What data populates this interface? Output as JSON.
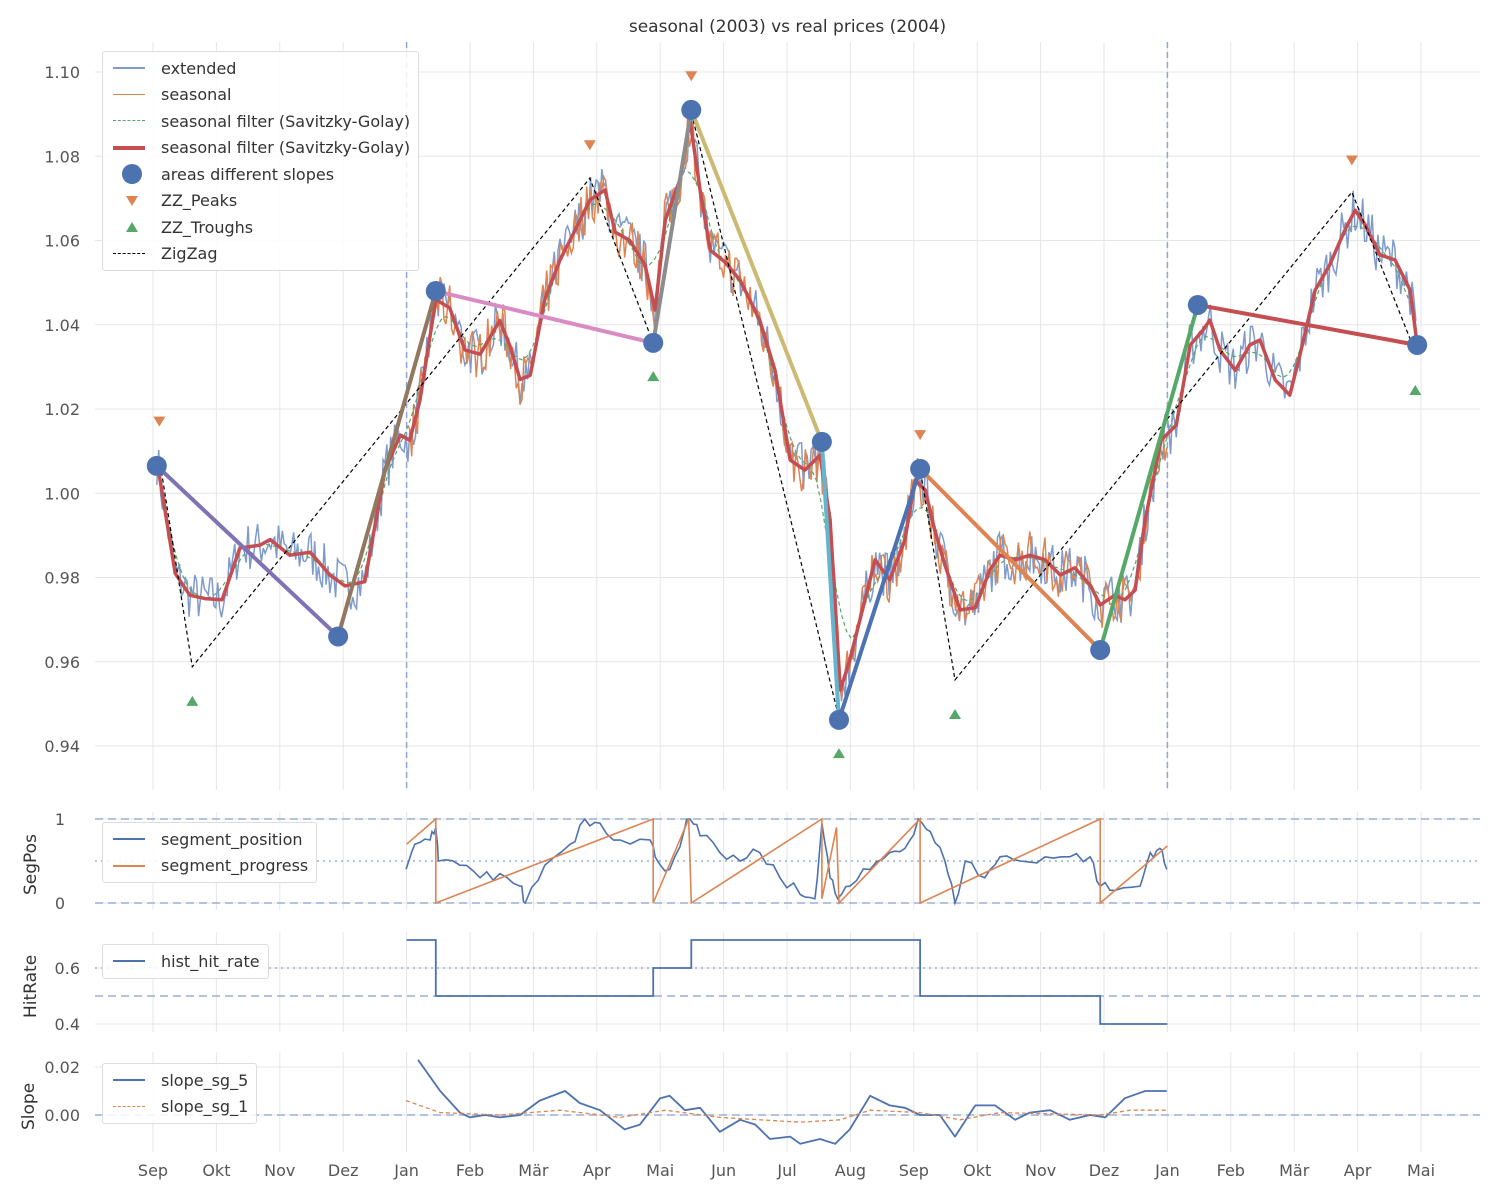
{
  "chart_data": [
    {
      "type": "line",
      "title": "seasonal (2003) vs real prices (2004)",
      "ylabel": "",
      "ylim": [
        0.93,
        1.107
      ],
      "x_unit": "months since Sep 2003",
      "xlim": [
        -0.9,
        21
      ],
      "xtick_labels": [
        "Sep",
        "Okt",
        "Nov",
        "Dez",
        "Jan",
        "Feb",
        "Mär",
        "Apr",
        "Mai",
        "Jun",
        "Jul",
        "Aug",
        "Sep",
        "Okt",
        "Nov",
        "Dez",
        "Jan",
        "Feb",
        "Mär",
        "Apr",
        "Mai"
      ],
      "ytick_labels": [
        "0.94",
        "0.96",
        "0.98",
        "1.00",
        "1.02",
        "1.04",
        "1.06",
        "1.08",
        "1.10"
      ],
      "yticks": [
        0.94,
        0.96,
        0.98,
        1.0,
        1.02,
        1.04,
        1.06,
        1.08,
        1.1
      ],
      "vlines": [
        4,
        16
      ],
      "legend": {
        "placement": "top-left",
        "entries": [
          "extended",
          "seasonal",
          "seasonal filter (Savitzky-Golay)",
          "seasonal filter (Savitzky-Golay)",
          "areas different slopes",
          "ZZ_Peaks",
          "ZZ_Troughs",
          "ZigZag"
        ]
      },
      "colors": {
        "extended": "#4C72B0",
        "seasonal": "#DD8452",
        "sg_thin": "#55A868",
        "sg": "#C44E52",
        "peaks": "#DD8452",
        "troughs": "#55A868"
      },
      "sg_filter": [
        [
          0.06,
          1.008
        ],
        [
          0.35,
          0.981
        ],
        [
          0.58,
          0.9758
        ],
        [
          0.82,
          0.975
        ],
        [
          1.09,
          0.9747
        ],
        [
          1.37,
          0.987
        ],
        [
          1.69,
          0.9877
        ],
        [
          1.85,
          0.989
        ],
        [
          2.16,
          0.9853
        ],
        [
          2.48,
          0.986
        ],
        [
          2.79,
          0.9806
        ],
        [
          3.03,
          0.978
        ],
        [
          3.34,
          0.979
        ],
        [
          3.66,
          1.0055
        ],
        [
          3.9,
          1.0138
        ],
        [
          4.05,
          1.0126
        ],
        [
          4.21,
          1.022
        ],
        [
          4.46,
          1.046
        ],
        [
          4.68,
          1.044
        ],
        [
          4.92,
          1.034
        ],
        [
          5.16,
          1.033
        ],
        [
          5.47,
          1.041
        ],
        [
          5.63,
          1.035
        ],
        [
          5.79,
          1.027
        ],
        [
          5.95,
          1.028
        ],
        [
          6.18,
          1.046
        ],
        [
          6.42,
          1.0554
        ],
        [
          6.66,
          1.0625
        ],
        [
          6.89,
          1.0696
        ],
        [
          7.13,
          1.072
        ],
        [
          7.29,
          1.062
        ],
        [
          7.52,
          1.06
        ],
        [
          7.76,
          1.0542
        ],
        [
          7.92,
          1.0435
        ],
        [
          8.08,
          1.0649
        ],
        [
          8.31,
          1.0744
        ],
        [
          8.47,
          1.0886
        ],
        [
          8.63,
          1.072
        ],
        [
          8.79,
          1.0577
        ],
        [
          9.02,
          1.0549
        ],
        [
          9.26,
          1.0506
        ],
        [
          9.57,
          1.0411
        ],
        [
          9.81,
          1.0292
        ],
        [
          10.05,
          1.0079
        ],
        [
          10.28,
          1.0055
        ],
        [
          10.52,
          1.009
        ],
        [
          10.68,
          0.9937
        ],
        [
          10.84,
          0.9533
        ],
        [
          10.99,
          0.9604
        ],
        [
          11.15,
          0.9699
        ],
        [
          11.39,
          0.9842
        ],
        [
          11.62,
          0.9794
        ],
        [
          11.86,
          0.9889
        ],
        [
          12.02,
          1.0031
        ],
        [
          12.18,
          1.0008
        ],
        [
          12.33,
          0.9913
        ],
        [
          12.49,
          0.983
        ],
        [
          12.73,
          0.9723
        ],
        [
          12.97,
          0.9728
        ],
        [
          13.2,
          0.9818
        ],
        [
          13.36,
          0.9853
        ],
        [
          13.6,
          0.9842
        ],
        [
          13.83,
          0.9853
        ],
        [
          14.07,
          0.9842
        ],
        [
          14.31,
          0.9806
        ],
        [
          14.54,
          0.9823
        ],
        [
          14.78,
          0.9782
        ],
        [
          14.94,
          0.9735
        ],
        [
          15.17,
          0.9758
        ],
        [
          15.33,
          0.9747
        ],
        [
          15.49,
          0.977
        ],
        [
          15.65,
          0.9937
        ],
        [
          15.9,
          1.0126
        ],
        [
          16.14,
          1.0162
        ],
        [
          16.36,
          1.0352
        ],
        [
          16.56,
          1.0387
        ],
        [
          16.67,
          1.0411
        ],
        [
          16.83,
          1.034
        ],
        [
          17.07,
          1.0292
        ],
        [
          17.3,
          1.0352
        ],
        [
          17.46,
          1.0364
        ],
        [
          17.7,
          1.0269
        ],
        [
          17.93,
          1.0233
        ],
        [
          18.09,
          1.0328
        ],
        [
          18.33,
          1.0482
        ],
        [
          18.56,
          1.0542
        ],
        [
          18.8,
          1.0625
        ],
        [
          18.96,
          1.0672
        ],
        [
          19.12,
          1.0637
        ],
        [
          19.35,
          1.0566
        ],
        [
          19.59,
          1.0554
        ],
        [
          19.83,
          1.0482
        ],
        [
          19.94,
          1.0352
        ]
      ],
      "extended_noise_amplitude": 0.006,
      "seasonal_range": [
        4,
        16
      ],
      "slope_areas": [
        [
          0.06,
          1.0065
        ],
        [
          2.92,
          0.966
        ],
        [
          4.46,
          1.048
        ],
        [
          7.89,
          1.0357
        ],
        [
          8.49,
          1.091
        ],
        [
          10.55,
          1.0122
        ],
        [
          10.82,
          0.9462
        ],
        [
          12.1,
          1.0058
        ],
        [
          14.94,
          0.9628
        ],
        [
          16.48,
          1.0447
        ],
        [
          19.94,
          1.0352
        ]
      ],
      "segment_colors": [
        "#8172B3",
        "#937860",
        "#DA8BC3",
        "#8C8C8C",
        "#CCB974",
        "#64B5CD",
        "#4C72B0",
        "#DD8452",
        "#55A868",
        "#C44E52"
      ],
      "peaks": [
        [
          0.1,
          1.017
        ],
        [
          6.89,
          1.0826
        ],
        [
          8.49,
          1.099
        ],
        [
          12.1,
          1.0138
        ],
        [
          18.91,
          1.079
        ]
      ],
      "troughs": [
        [
          0.62,
          0.9507
        ],
        [
          7.89,
          1.0278
        ],
        [
          10.82,
          0.9383
        ],
        [
          12.65,
          0.9476
        ],
        [
          19.91,
          1.0245
        ]
      ],
      "zigzag": [
        [
          0.1,
          1.0084
        ],
        [
          0.62,
          0.9588
        ],
        [
          6.89,
          1.0748
        ],
        [
          7.89,
          1.0357
        ],
        [
          8.49,
          1.0905
        ],
        [
          10.82,
          0.9466
        ],
        [
          12.1,
          1.0058
        ],
        [
          12.65,
          0.9557
        ],
        [
          18.91,
          1.0715
        ],
        [
          19.91,
          1.0335
        ]
      ]
    },
    {
      "type": "line",
      "ylabel": "SegPos",
      "ylim": [
        0,
        1
      ],
      "ytick_labels": [
        "0",
        "1"
      ],
      "yticks": [
        0,
        1
      ],
      "hlines_dashed": [
        0,
        1
      ],
      "hlines_dotted": [
        0.5
      ],
      "legend": {
        "placement": "top-left",
        "entries": [
          "segment_position",
          "segment_progress"
        ]
      },
      "segment_position": [
        [
          3.99,
          0.4
        ],
        [
          4.13,
          0.7
        ],
        [
          4.37,
          0.75
        ],
        [
          4.46,
          0.9
        ],
        [
          4.5,
          0.5
        ],
        [
          4.84,
          0.45
        ],
        [
          5.16,
          0.3
        ],
        [
          5.47,
          0.35
        ],
        [
          5.79,
          0.2
        ],
        [
          5.87,
          0
        ],
        [
          6.18,
          0.45
        ],
        [
          6.58,
          0.7
        ],
        [
          6.81,
          1
        ],
        [
          7.05,
          0.95
        ],
        [
          7.37,
          0.75
        ],
        [
          7.84,
          0.75
        ],
        [
          7.92,
          0.55
        ],
        [
          8.15,
          0.4
        ],
        [
          8.39,
          0.9
        ],
        [
          8.47,
          1
        ],
        [
          8.63,
          0.8
        ],
        [
          8.94,
          0.6
        ],
        [
          9.26,
          0.5
        ],
        [
          9.57,
          0.6
        ],
        [
          9.89,
          0.3
        ],
        [
          10.21,
          0.1
        ],
        [
          10.44,
          0.05
        ],
        [
          10.55,
          0.95
        ],
        [
          10.68,
          0.3
        ],
        [
          10.8,
          0.05
        ],
        [
          10.99,
          0.2
        ],
        [
          11.31,
          0.4
        ],
        [
          11.62,
          0.6
        ],
        [
          11.86,
          0.65
        ],
        [
          12.07,
          1
        ],
        [
          12.26,
          0.85
        ],
        [
          12.49,
          0.5
        ],
        [
          12.65,
          0
        ],
        [
          12.81,
          0.5
        ],
        [
          13.12,
          0.3
        ],
        [
          13.36,
          0.55
        ],
        [
          13.68,
          0.5
        ],
        [
          14.07,
          0.55
        ],
        [
          14.46,
          0.55
        ],
        [
          14.78,
          0.55
        ],
        [
          14.94,
          0.2
        ],
        [
          15.17,
          0.15
        ],
        [
          15.57,
          0.2
        ],
        [
          15.73,
          0.6
        ],
        [
          15.88,
          0.65
        ],
        [
          15.99,
          0.4
        ]
      ],
      "segment_progress": [
        [
          4,
          0.7
        ],
        [
          4.46,
          1
        ],
        [
          4.46,
          0
        ],
        [
          7.89,
          1
        ],
        [
          7.89,
          0
        ],
        [
          8.45,
          1
        ],
        [
          8.49,
          0
        ],
        [
          10.55,
          1
        ],
        [
          10.55,
          0.05
        ],
        [
          10.78,
          0.9
        ],
        [
          10.82,
          0
        ],
        [
          12.1,
          1
        ],
        [
          12.1,
          0
        ],
        [
          14.94,
          1
        ],
        [
          14.94,
          0
        ],
        [
          16,
          0.68
        ]
      ]
    },
    {
      "type": "line",
      "ylabel": "HitRate",
      "ylim": [
        0.4,
        0.7
      ],
      "ytick_labels": [
        "0.4",
        "0.6"
      ],
      "yticks": [
        0.4,
        0.6
      ],
      "hlines_dashed": [
        0.5
      ],
      "hlines_dotted": [
        0.6
      ],
      "legend": {
        "placement": "top-left",
        "entries": [
          "hist_hit_rate"
        ]
      },
      "hist_hit_rate": [
        [
          4,
          0.7
        ],
        [
          4.46,
          0.7
        ],
        [
          4.46,
          0.5
        ],
        [
          7.89,
          0.5
        ],
        [
          7.89,
          0.6
        ],
        [
          8.49,
          0.6
        ],
        [
          8.49,
          0.7
        ],
        [
          12.1,
          0.7
        ],
        [
          12.1,
          0.5
        ],
        [
          14.94,
          0.5
        ],
        [
          14.94,
          0.4
        ],
        [
          16,
          0.4
        ]
      ]
    },
    {
      "type": "line",
      "ylabel": "Slope",
      "ylim": [
        -0.013,
        0.023
      ],
      "ytick_labels": [
        "0.00",
        "0.02"
      ],
      "yticks": [
        0,
        0.02
      ],
      "hlines_dashed": [
        0
      ],
      "legend": {
        "placement": "top-left",
        "entries": [
          "slope_sg_5",
          "slope_sg_1"
        ]
      },
      "slope_sg_5": [
        [
          4.18,
          0.023
        ],
        [
          4.53,
          0.01
        ],
        [
          4.84,
          0.001
        ],
        [
          5.0,
          -0.001
        ],
        [
          5.24,
          0
        ],
        [
          5.47,
          -0.001
        ],
        [
          5.79,
          0
        ],
        [
          6.1,
          0.006
        ],
        [
          6.5,
          0.01
        ],
        [
          6.73,
          0.005
        ],
        [
          7.05,
          0.002
        ],
        [
          7.44,
          -0.006
        ],
        [
          7.68,
          -0.004
        ],
        [
          8.0,
          0.007
        ],
        [
          8.15,
          0.008
        ],
        [
          8.39,
          0.002
        ],
        [
          8.63,
          0.003
        ],
        [
          8.94,
          -0.007
        ],
        [
          9.26,
          -0.002
        ],
        [
          9.5,
          -0.004
        ],
        [
          9.73,
          -0.01
        ],
        [
          10.05,
          -0.009
        ],
        [
          10.21,
          -0.012
        ],
        [
          10.52,
          -0.01
        ],
        [
          10.76,
          -0.012
        ],
        [
          10.99,
          -0.006
        ],
        [
          11.31,
          0.008
        ],
        [
          11.62,
          0.004
        ],
        [
          11.86,
          0.003
        ],
        [
          12.1,
          0
        ],
        [
          12.41,
          0
        ],
        [
          12.65,
          -0.009
        ],
        [
          12.97,
          0.004
        ],
        [
          13.28,
          0.004
        ],
        [
          13.6,
          -0.002
        ],
        [
          13.83,
          0.001
        ],
        [
          14.15,
          0.002
        ],
        [
          14.46,
          -0.002
        ],
        [
          14.78,
          0
        ],
        [
          15.02,
          -0.001
        ],
        [
          15.33,
          0.007
        ],
        [
          15.65,
          0.01
        ],
        [
          15.99,
          0.01
        ]
      ],
      "slope_sg_1": [
        [
          3.99,
          0.006
        ],
        [
          4.53,
          0.001
        ],
        [
          5.47,
          0
        ],
        [
          6.42,
          0.002
        ],
        [
          7.37,
          -0.001
        ],
        [
          8.08,
          0.002
        ],
        [
          8.94,
          -0.001
        ],
        [
          10.21,
          -0.003
        ],
        [
          10.84,
          -0.002
        ],
        [
          11.31,
          0.002
        ],
        [
          12.1,
          0.001
        ],
        [
          12.73,
          -0.002
        ],
        [
          13.36,
          0.001
        ],
        [
          14.94,
          0
        ],
        [
          15.41,
          0.002
        ],
        [
          15.99,
          0.002
        ]
      ]
    }
  ]
}
